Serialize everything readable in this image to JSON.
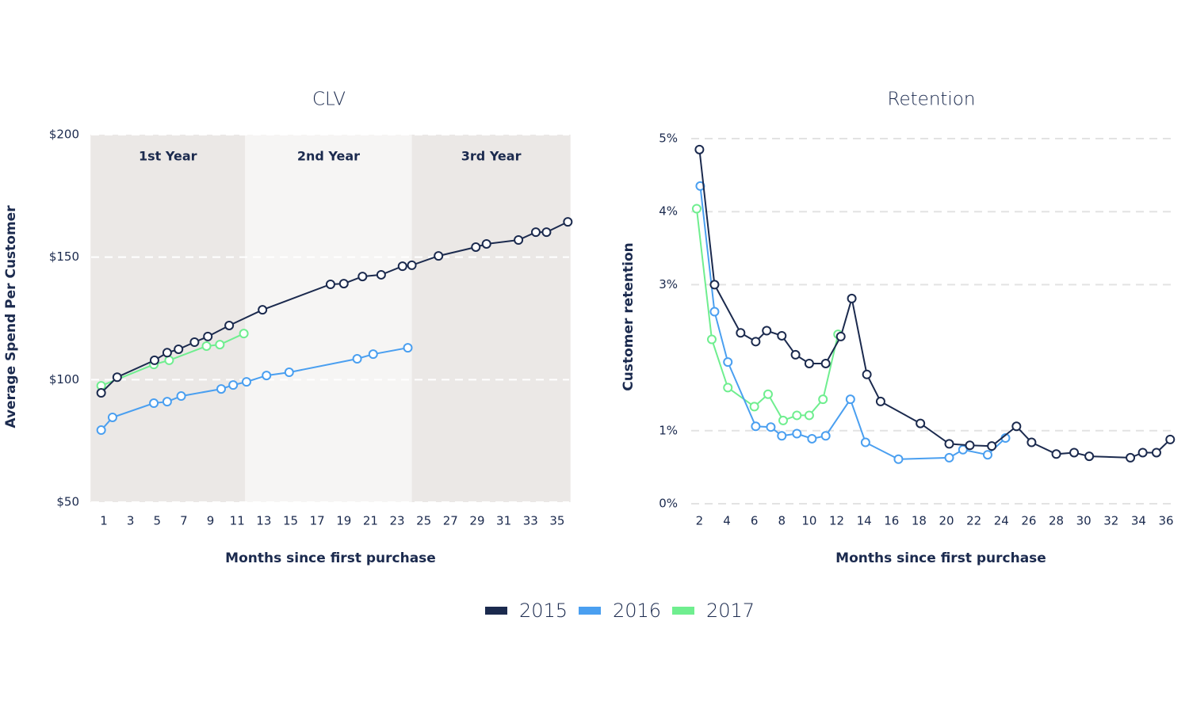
{
  "chart_data": [
    {
      "type": "line",
      "title": "CLV",
      "x_label": "Months since first purchase",
      "y_label": "Average Spend Per Customer",
      "xlim": [
        0,
        36
      ],
      "ylim": [
        50,
        200
      ],
      "xticks": [
        1,
        3,
        5,
        7,
        9,
        11,
        13,
        15,
        17,
        19,
        21,
        23,
        25,
        27,
        29,
        31,
        33,
        35
      ],
      "yticks": [
        {
          "value": 50,
          "label": "$50"
        },
        {
          "value": 100,
          "label": "$100"
        },
        {
          "value": 150,
          "label": "$150"
        },
        {
          "value": 200,
          "label": "$200"
        }
      ],
      "grid": true,
      "regions": [
        {
          "label": "1st Year",
          "start": 0,
          "end": 11.6,
          "color": "#ebe8e6"
        },
        {
          "label": "2nd Year",
          "start": 11.6,
          "end": 24.1,
          "color": "#f6f5f4"
        },
        {
          "label": "3rd Year",
          "start": 24.1,
          "end": 36,
          "color": "#ebe8e6"
        }
      ],
      "series": [
        {
          "name": "2015",
          "color": "#1b2a4e",
          "x": [
            0.8,
            2,
            4.8,
            5.75,
            6.6,
            7.8,
            8.8,
            10.4,
            12.9,
            18,
            19,
            20.4,
            21.8,
            23.4,
            24.1,
            26.1,
            28.9,
            29.7,
            32.1,
            33.4,
            34.2,
            35.8
          ],
          "values": [
            94.6,
            101,
            107.9,
            111,
            112.4,
            115.3,
            117.6,
            122.1,
            128.5,
            138.9,
            139.2,
            142.1,
            142.8,
            146.3,
            146.7,
            150.5,
            154.1,
            155.4,
            157,
            160.2,
            160.2,
            164.4
          ]
        },
        {
          "name": "2016",
          "color": "#4a9ff0",
          "x": [
            0.8,
            1.65,
            4.75,
            5.75,
            6.8,
            9.8,
            10.7,
            11.7,
            13.2,
            14.9,
            20,
            21.2,
            23.8
          ],
          "values": [
            79.4,
            84.6,
            90.4,
            91,
            93.3,
            96.2,
            97.8,
            99.1,
            101.7,
            103,
            108.5,
            110.4,
            113
          ]
        },
        {
          "name": "2017",
          "color": "#6fee8f",
          "x": [
            0.8,
            4.75,
            5.9,
            8.7,
            9.7,
            11.5
          ],
          "values": [
            97.5,
            106.2,
            107.9,
            113.7,
            114.3,
            118.8
          ]
        }
      ]
    },
    {
      "type": "line",
      "title": "Retention",
      "x_label": "Months since first purchase",
      "y_label": "Customer retention",
      "xlim": [
        1.4,
        36.4
      ],
      "ylim": [
        0,
        5
      ],
      "xticks": [
        2,
        4,
        6,
        8,
        10,
        12,
        14,
        16,
        18,
        20,
        22,
        24,
        26,
        28,
        30,
        32,
        34,
        36
      ],
      "yticks": [
        {
          "value": 0,
          "label": "0%"
        },
        {
          "value": 1,
          "label": "1%"
        },
        {
          "value": 3,
          "label": "3%"
        },
        {
          "value": 4,
          "label": "4%"
        },
        {
          "value": 5,
          "label": "5%"
        }
      ],
      "grid": true,
      "series": [
        {
          "name": "2015",
          "color": "#1b2a4e",
          "x": [
            2,
            3.1,
            5,
            6.1,
            6.9,
            8,
            9,
            10,
            11.2,
            12.3,
            13.1,
            14.2,
            15.2,
            18.1,
            20.2,
            21.7,
            23.3,
            25.1,
            26.2,
            28,
            29.3,
            30.4,
            33.4,
            34.3,
            35.3,
            36.3
          ],
          "values": [
            4.85,
            3.0,
            2.34,
            2.22,
            2.37,
            2.3,
            2.04,
            1.92,
            1.92,
            2.29,
            2.81,
            1.77,
            1.4,
            1.1,
            0.82,
            0.8,
            0.79,
            1.06,
            0.84,
            0.68,
            0.7,
            0.65,
            0.63,
            0.7,
            0.7,
            0.88
          ]
        },
        {
          "name": "2016",
          "color": "#4a9ff0",
          "x": [
            2.06,
            3.1,
            4.07,
            6.1,
            7.2,
            8,
            9.1,
            10.2,
            11.2,
            13,
            14.1,
            16.5,
            20.2,
            21.2,
            23,
            24.3
          ],
          "values": [
            4.35,
            2.63,
            1.94,
            1.06,
            1.05,
            0.93,
            0.96,
            0.89,
            0.93,
            1.43,
            0.84,
            0.61,
            0.63,
            0.74,
            0.67,
            0.9
          ]
        },
        {
          "name": "2017",
          "color": "#6fee8f",
          "x": [
            1.8,
            2.9,
            4.07,
            6,
            7,
            8.1,
            9.1,
            10,
            11,
            12.1
          ],
          "values": [
            4.04,
            2.25,
            1.59,
            1.33,
            1.5,
            1.14,
            1.21,
            1.21,
            1.43,
            2.32
          ]
        }
      ]
    }
  ]
}
